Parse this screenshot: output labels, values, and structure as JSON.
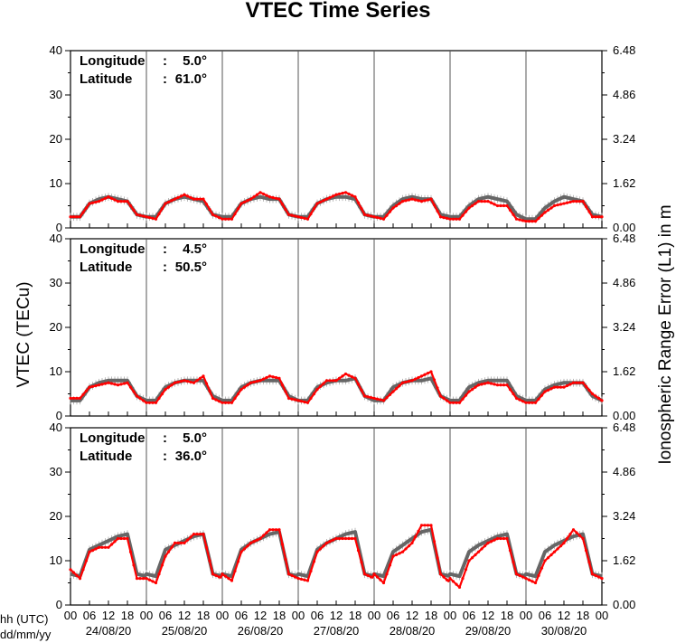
{
  "chart_data": {
    "type": "line",
    "title": "VTEC Time Series",
    "ylabel": "VTEC (TECu)",
    "ylabel_right": "Ionospheric Range Error (L1) in m",
    "xlabel_hours": "hh (UTC)",
    "xlabel_dates": "dd/mm/yy",
    "ylim": [
      0,
      40
    ],
    "yticks": [
      "0",
      "10",
      "20",
      "30",
      "40"
    ],
    "yticks_right": [
      "0.00",
      "1.62",
      "3.24",
      "4.86",
      "6.48"
    ],
    "hour_ticks": [
      "00",
      "06",
      "12",
      "18"
    ],
    "days": [
      "24/08/20",
      "25/08/20",
      "26/08/20",
      "27/08/20",
      "28/08/20",
      "29/08/20",
      "30/08/20"
    ],
    "grid": false,
    "series_colors": {
      "observed": "#ff0000",
      "reference": "#666666",
      "error_bars": "#aaaaaa"
    },
    "panels": [
      {
        "longitude_label": "Longitude",
        "longitude_value": "5.0°",
        "latitude_label": "Latitude",
        "latitude_value": "61.0°",
        "daily_profile": {
          "hours": [
            0,
            3,
            6,
            9,
            12,
            15,
            18,
            21,
            24
          ],
          "observed": [
            [
              2.5,
              2.5,
              5.5,
              6.0,
              7.0,
              6.0,
              6.0,
              3.0,
              2.5
            ],
            [
              2.5,
              2.0,
              5.5,
              6.5,
              7.5,
              6.5,
              6.5,
              3.0,
              2.0
            ],
            [
              2.0,
              2.0,
              5.5,
              6.5,
              8.0,
              7.0,
              6.5,
              3.0,
              2.5
            ],
            [
              2.5,
              2.0,
              5.5,
              6.5,
              7.5,
              8.0,
              7.0,
              3.0,
              2.5
            ],
            [
              2.5,
              2.0,
              4.5,
              6.0,
              6.5,
              6.0,
              6.5,
              2.5,
              2.0
            ],
            [
              2.0,
              2.0,
              4.5,
              6.0,
              6.0,
              5.0,
              5.0,
              2.0,
              1.5
            ],
            [
              1.5,
              1.5,
              3.5,
              5.0,
              5.5,
              6.0,
              6.0,
              2.5,
              2.5
            ]
          ],
          "reference": [
            [
              2.5,
              2.5,
              5.5,
              6.5,
              7.0,
              6.5,
              6.0,
              3.0,
              2.5
            ],
            [
              2.5,
              2.5,
              5.5,
              6.5,
              7.0,
              6.5,
              6.0,
              3.0,
              2.5
            ],
            [
              2.5,
              2.5,
              5.5,
              6.5,
              7.0,
              6.5,
              6.5,
              3.0,
              2.5
            ],
            [
              2.5,
              2.5,
              5.5,
              6.5,
              7.0,
              7.0,
              6.5,
              3.0,
              2.5
            ],
            [
              2.5,
              2.5,
              5.0,
              6.5,
              7.0,
              6.5,
              6.5,
              3.0,
              2.5
            ],
            [
              2.5,
              2.5,
              5.0,
              6.5,
              7.0,
              6.5,
              6.0,
              3.0,
              2.0
            ],
            [
              2.0,
              2.0,
              4.5,
              6.0,
              7.0,
              6.5,
              6.0,
              3.0,
              2.5
            ]
          ]
        }
      },
      {
        "longitude_label": "Longitude",
        "longitude_value": "4.5°",
        "latitude_label": "Latitude",
        "latitude_value": "50.5°",
        "daily_profile": {
          "hours": [
            0,
            3,
            6,
            9,
            12,
            15,
            18,
            21,
            24
          ],
          "observed": [
            [
              4.0,
              4.0,
              6.5,
              7.0,
              7.5,
              7.0,
              7.5,
              4.5,
              3.0
            ],
            [
              3.0,
              3.0,
              6.0,
              7.5,
              8.0,
              7.5,
              9.0,
              4.0,
              3.0
            ],
            [
              3.0,
              3.0,
              6.0,
              7.5,
              8.0,
              9.0,
              8.5,
              4.0,
              3.5
            ],
            [
              3.5,
              3.0,
              6.0,
              8.0,
              8.0,
              9.5,
              8.5,
              4.5,
              4.0
            ],
            [
              4.0,
              3.5,
              5.5,
              7.5,
              8.0,
              9.0,
              10.0,
              4.5,
              3.0
            ],
            [
              3.0,
              3.0,
              5.5,
              7.0,
              7.5,
              7.0,
              7.0,
              4.0,
              3.0
            ],
            [
              3.0,
              3.0,
              5.5,
              6.5,
              6.5,
              7.5,
              7.5,
              5.0,
              3.5
            ]
          ],
          "reference": [
            [
              3.5,
              3.5,
              6.5,
              7.5,
              8.0,
              8.0,
              8.0,
              4.5,
              3.5
            ],
            [
              3.5,
              3.5,
              6.5,
              7.5,
              8.0,
              8.0,
              8.0,
              4.5,
              3.5
            ],
            [
              3.5,
              3.5,
              6.5,
              7.5,
              8.0,
              8.0,
              8.0,
              4.5,
              3.5
            ],
            [
              3.5,
              3.5,
              6.5,
              7.5,
              8.0,
              8.0,
              8.5,
              4.5,
              3.5
            ],
            [
              3.5,
              3.5,
              6.5,
              7.5,
              8.0,
              8.0,
              8.5,
              4.5,
              3.5
            ],
            [
              3.5,
              3.5,
              6.5,
              7.5,
              8.0,
              8.0,
              8.0,
              4.5,
              3.5
            ],
            [
              3.5,
              3.5,
              6.0,
              7.0,
              7.5,
              7.5,
              7.5,
              4.5,
              3.5
            ]
          ]
        }
      },
      {
        "longitude_label": "Longitude",
        "longitude_value": "5.0°",
        "latitude_label": "Latitude",
        "latitude_value": "36.0°",
        "daily_profile": {
          "hours": [
            0,
            3,
            6,
            9,
            12,
            15,
            18,
            21,
            24
          ],
          "observed": [
            [
              8.0,
              6.0,
              12.0,
              13.0,
              13.0,
              15.0,
              15.0,
              6.0,
              6.0
            ],
            [
              6.0,
              5.0,
              11.0,
              14.0,
              14.0,
              16.0,
              16.0,
              7.0,
              6.0
            ],
            [
              7.0,
              5.5,
              12.0,
              14.0,
              15.0,
              17.0,
              17.0,
              7.0,
              6.0
            ],
            [
              6.0,
              5.5,
              12.0,
              14.0,
              15.0,
              15.0,
              15.0,
              7.0,
              6.0
            ],
            [
              7.0,
              5.0,
              11.0,
              12.0,
              14.0,
              18.0,
              18.0,
              7.0,
              5.0
            ],
            [
              6.0,
              4.0,
              10.0,
              12.0,
              14.0,
              15.0,
              15.0,
              7.0,
              6.0
            ],
            [
              6.0,
              5.0,
              10.0,
              12.0,
              14.0,
              17.0,
              15.0,
              7.0,
              6.0
            ]
          ],
          "reference": [
            [
              7.0,
              6.5,
              12.5,
              13.5,
              14.5,
              15.5,
              16.0,
              7.0,
              6.5
            ],
            [
              7.0,
              6.5,
              12.5,
              13.5,
              14.5,
              15.5,
              16.0,
              7.0,
              6.5
            ],
            [
              7.0,
              6.5,
              12.5,
              14.0,
              15.0,
              16.0,
              16.5,
              7.0,
              6.5
            ],
            [
              7.0,
              6.5,
              12.5,
              14.0,
              15.0,
              16.0,
              16.5,
              7.0,
              6.5
            ],
            [
              7.0,
              6.5,
              12.0,
              13.5,
              15.0,
              16.5,
              17.0,
              7.0,
              6.5
            ],
            [
              7.0,
              6.5,
              12.0,
              13.5,
              14.5,
              15.5,
              16.0,
              7.0,
              6.5
            ],
            [
              7.0,
              6.5,
              12.0,
              13.5,
              14.5,
              15.5,
              16.0,
              7.0,
              6.5
            ]
          ]
        }
      }
    ]
  }
}
